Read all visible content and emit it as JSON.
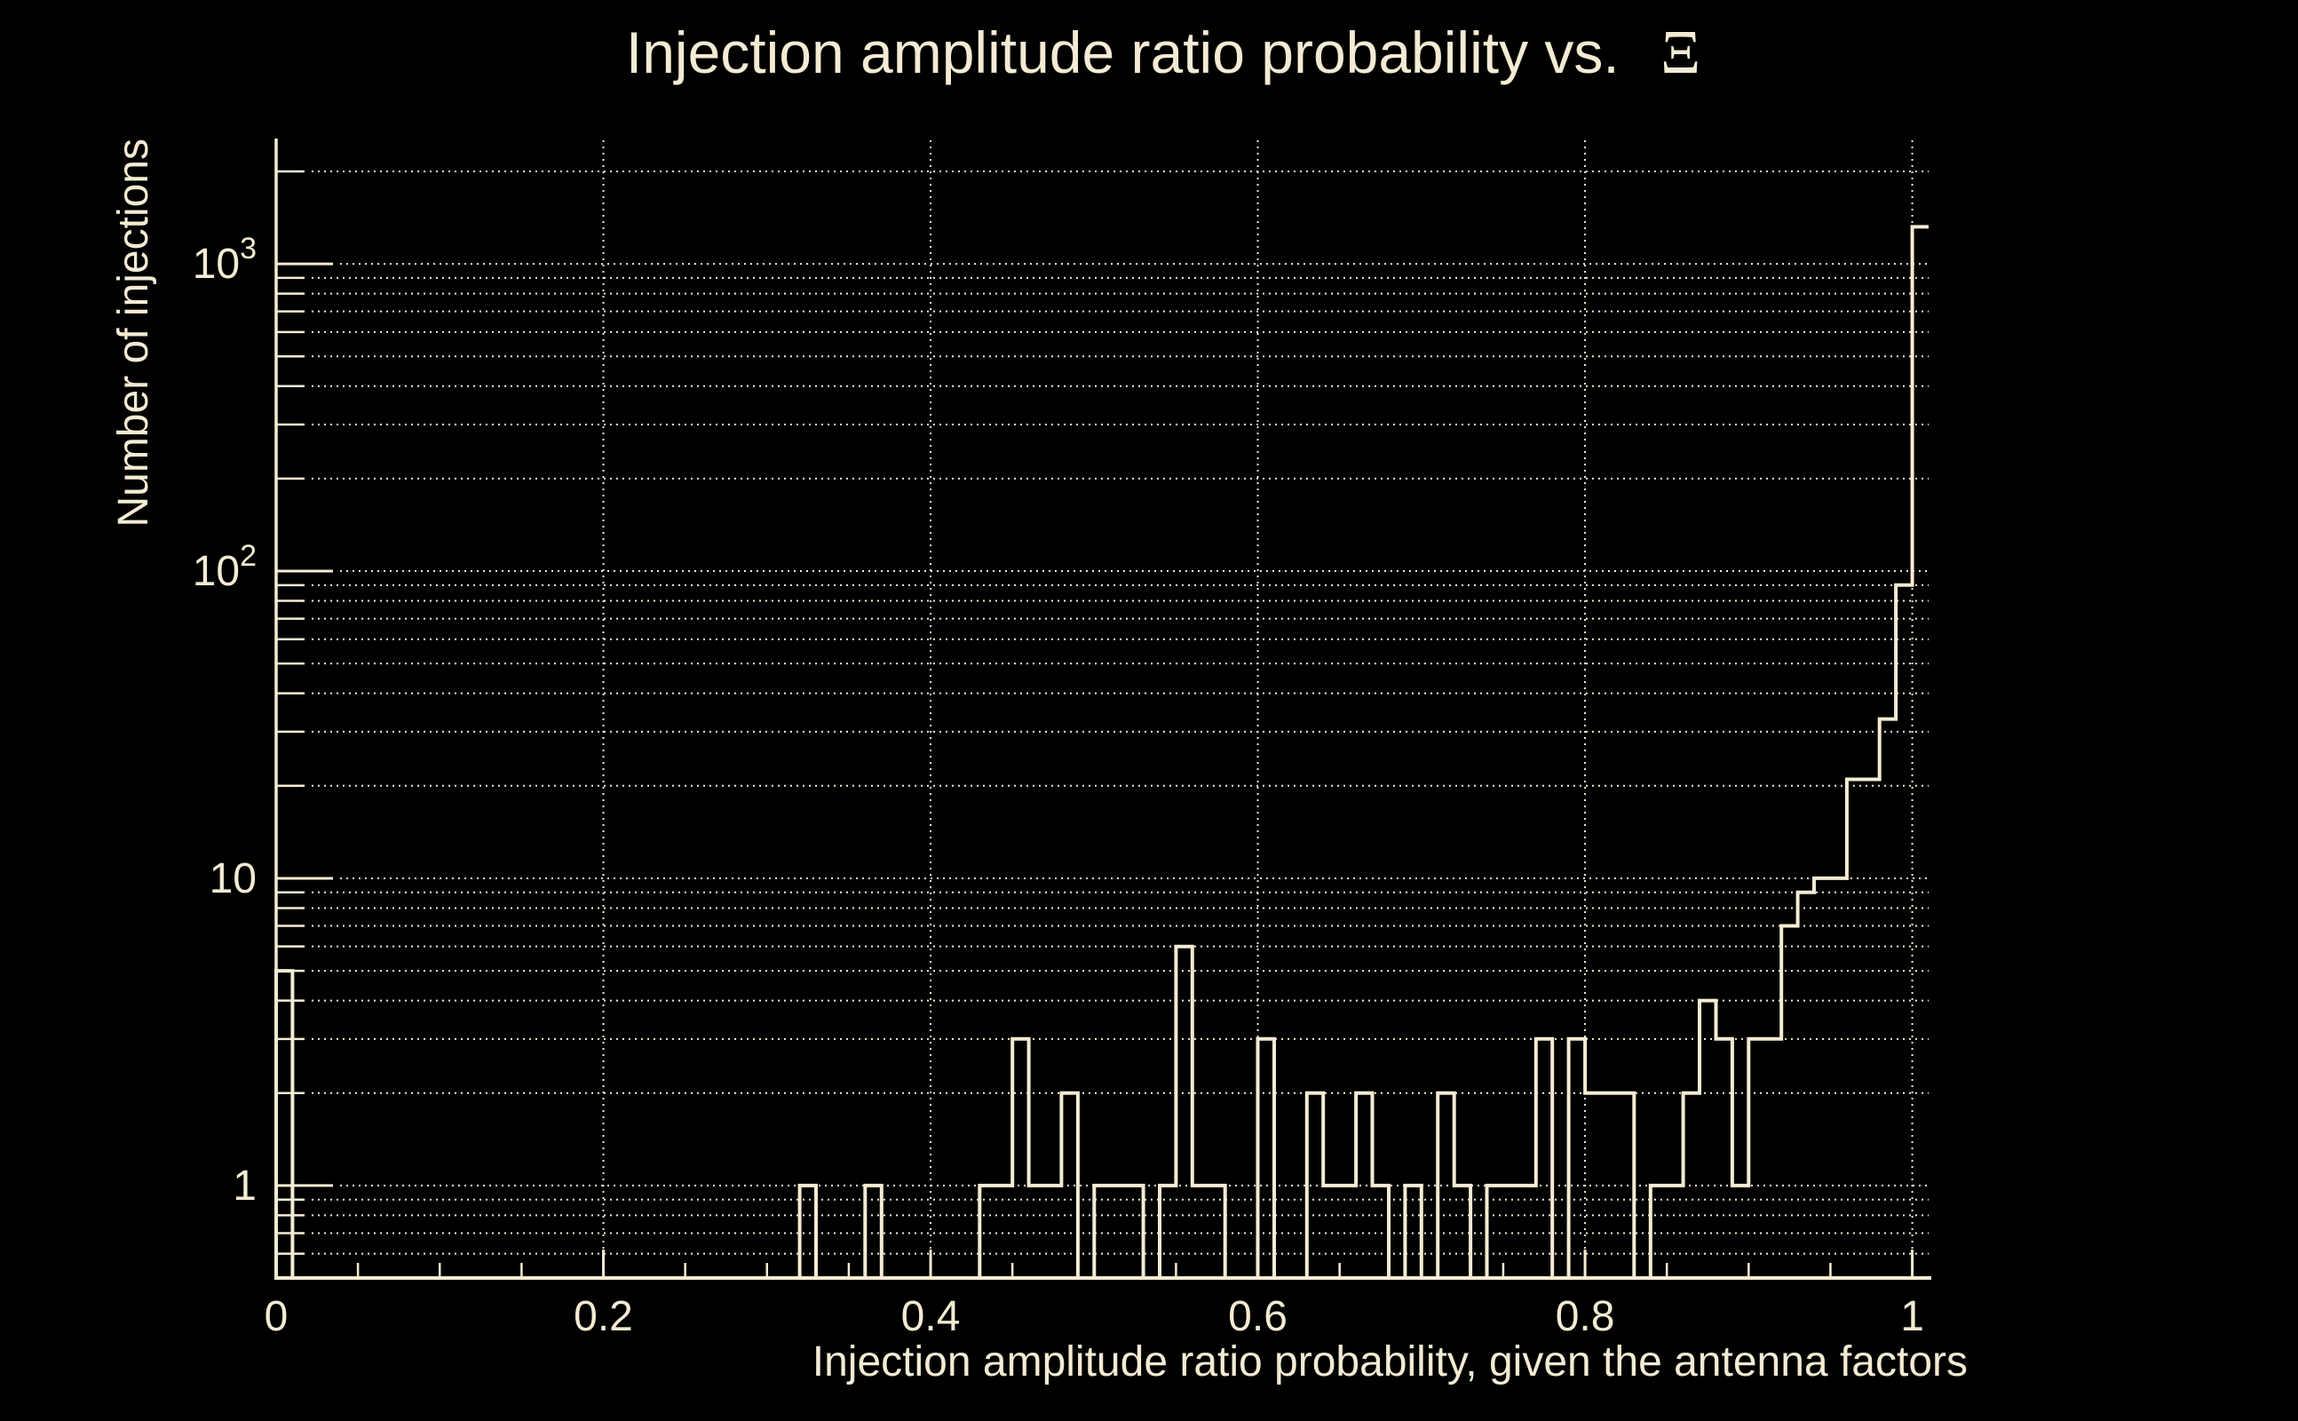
{
  "colors": {
    "background": "#000000",
    "foreground": "#f3ebd3"
  },
  "chart_data": {
    "type": "bar",
    "subtype": "step-histogram",
    "title": "Injection amplitude ratio probability vs.",
    "title_symbol": "Ξ",
    "xlabel": "Injection amplitude ratio probability, given the antenna factors",
    "ylabel": "Number of injections",
    "yscale": "log",
    "xlim": [
      0,
      1.01
    ],
    "ylim": [
      0.5,
      2524
    ],
    "grid": true,
    "grid_style": "dotted",
    "x_major_ticks": [
      0,
      0.2,
      0.4,
      0.6,
      0.8,
      1.0
    ],
    "x_tick_labels": [
      "0",
      "0.2",
      "0.4",
      "0.6",
      "0.8",
      "1"
    ],
    "x_minor_step": 0.05,
    "y_major_labels": [
      {
        "value": 1,
        "base": "1",
        "exp": ""
      },
      {
        "value": 10,
        "base": "10",
        "exp": ""
      },
      {
        "value": 100,
        "base": "10",
        "exp": "2"
      },
      {
        "value": 1000,
        "base": "10",
        "exp": "3"
      }
    ],
    "bins": {
      "start": 0,
      "width": 0.01,
      "count": 101
    },
    "values": [
      5,
      0,
      0,
      0,
      0,
      0,
      0,
      0,
      0,
      0,
      0,
      0,
      0,
      0,
      0,
      0,
      0,
      0,
      0,
      0,
      0,
      0,
      0,
      0,
      0,
      0,
      0,
      0,
      0,
      0,
      0,
      0,
      1,
      0,
      0,
      0,
      1,
      0,
      0,
      0,
      0,
      0,
      0,
      1,
      1,
      3,
      1,
      1,
      2,
      0,
      1,
      1,
      1,
      0,
      1,
      6,
      1,
      1,
      0,
      0,
      3,
      0,
      0,
      2,
      1,
      1,
      2,
      1,
      0,
      1,
      0,
      2,
      1,
      0,
      1,
      1,
      1,
      3,
      0,
      3,
      2,
      2,
      2,
      0,
      1,
      1,
      2,
      4,
      3,
      1,
      3,
      3,
      7,
      9,
      10,
      10,
      21,
      21,
      33,
      90,
      1320
    ]
  }
}
